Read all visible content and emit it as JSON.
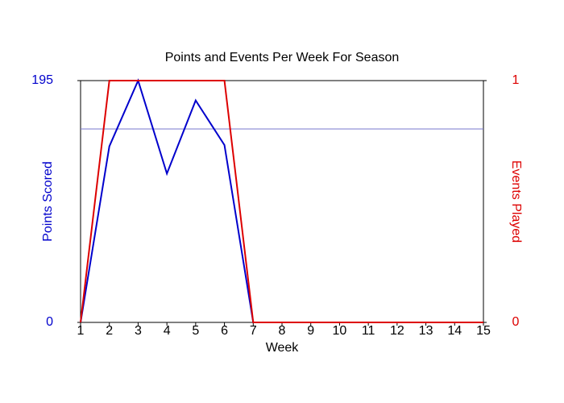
{
  "chart_data": {
    "type": "line",
    "title": "Points and Events Per Week For Season",
    "x_label": "Week",
    "y_label": "Points Scored",
    "y2_label": "Events Played",
    "x": [
      1,
      2,
      3,
      4,
      5,
      6,
      7,
      8,
      9,
      10,
      11,
      12,
      13,
      14,
      15
    ],
    "xlim": [
      1,
      15
    ],
    "xticks": [
      1,
      2,
      3,
      4,
      5,
      6,
      7,
      8,
      9,
      10,
      11,
      12,
      13,
      14,
      15
    ],
    "ylim": [
      0,
      195
    ],
    "yticks": [
      0,
      195
    ],
    "y2lim": [
      0,
      1
    ],
    "y2ticks": [
      0,
      1
    ],
    "y_color": "#0000cc",
    "y2_color": "#dd0000",
    "hline": {
      "value": 156,
      "color": "#7777cc"
    },
    "series": [
      {
        "name": "Points Scored",
        "color": "#0000cc",
        "values": [
          0,
          142,
          195,
          120,
          179,
          143,
          0,
          0,
          0,
          0,
          0,
          0,
          0,
          0,
          0
        ]
      },
      {
        "name": "Events Played",
        "color": "#dd0000",
        "axis": "y2",
        "values": [
          0,
          1,
          1,
          1,
          1,
          1,
          0,
          0,
          0,
          0,
          0,
          0,
          0,
          0,
          0
        ]
      }
    ]
  }
}
